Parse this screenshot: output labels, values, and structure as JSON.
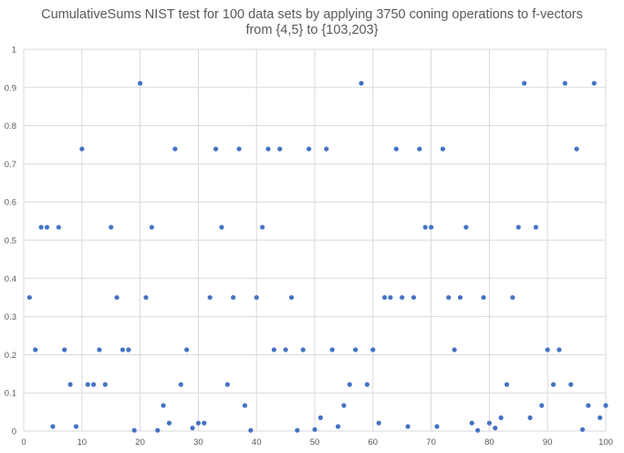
{
  "chart_data": {
    "type": "scatter",
    "title": "CumulativeSums NIST test for 100 data sets by applying 3750 coning operations to f-vectors",
    "subtitle": "from {4,5} to {103,203}",
    "xlabel": "",
    "ylabel": "",
    "xlim": [
      0,
      100
    ],
    "ylim": [
      0,
      1
    ],
    "x_ticks": [
      "0",
      "10",
      "20",
      "30",
      "40",
      "50",
      "60",
      "70",
      "80",
      "90",
      "100"
    ],
    "y_ticks": [
      "0",
      "0.1",
      "0.2",
      "0.3",
      "0.4",
      "0.5",
      "0.6",
      "0.7",
      "0.8",
      "0.9",
      "1"
    ],
    "grid": true,
    "legend": "none",
    "marker_color": "#4472C4",
    "series": [
      {
        "x": [
          1,
          2,
          3,
          4,
          5,
          6,
          7,
          8,
          9,
          10,
          11,
          12,
          13,
          14,
          15,
          16,
          17,
          18,
          19,
          20,
          21,
          22,
          23,
          24,
          25,
          26,
          27,
          28,
          29,
          30,
          31,
          32,
          33,
          34,
          35,
          36,
          37,
          38,
          39,
          40,
          41,
          42,
          43,
          44,
          45,
          46,
          47,
          48,
          49,
          50,
          51,
          52,
          53,
          54,
          55,
          56,
          57,
          58,
          59,
          60,
          61,
          62,
          63,
          64,
          65,
          66,
          67,
          68,
          69,
          70,
          71,
          72,
          73,
          74,
          75,
          76,
          77,
          78,
          79,
          80,
          81,
          82,
          83,
          84,
          85,
          86,
          87,
          88,
          89,
          90,
          91,
          92,
          93,
          94,
          95,
          96,
          97,
          98,
          99,
          100
        ],
        "y": [
          0.35,
          0.213,
          0.534,
          0.534,
          0.012,
          0.534,
          0.213,
          0.122,
          0.012,
          0.739,
          0.122,
          0.122,
          0.213,
          0.122,
          0.534,
          0.35,
          0.213,
          0.213,
          0.002,
          0.911,
          0.35,
          0.534,
          0.002,
          0.067,
          0.021,
          0.739,
          0.122,
          0.213,
          0.008,
          0.021,
          0.021,
          0.35,
          0.739,
          0.534,
          0.122,
          0.35,
          0.739,
          0.067,
          0.002,
          0.35,
          0.534,
          0.739,
          0.213,
          0.739,
          0.213,
          0.35,
          0.002,
          0.213,
          0.739,
          0.004,
          0.035,
          0.739,
          0.213,
          0.012,
          0.067,
          0.122,
          0.213,
          0.911,
          0.122,
          0.213,
          0.021,
          0.35,
          0.35,
          0.739,
          0.35,
          0.012,
          0.35,
          0.739,
          0.534,
          0.534,
          0.012,
          0.739,
          0.35,
          0.213,
          0.35,
          0.534,
          0.021,
          0.002,
          0.35,
          0.021,
          0.008,
          0.035,
          0.122,
          0.35,
          0.534,
          0.911,
          0.035,
          0.534,
          0.067,
          0.213,
          0.122,
          0.213,
          0.911,
          0.122,
          0.739,
          0.004,
          0.067,
          0.911,
          0.035,
          0.067
        ]
      }
    ]
  }
}
